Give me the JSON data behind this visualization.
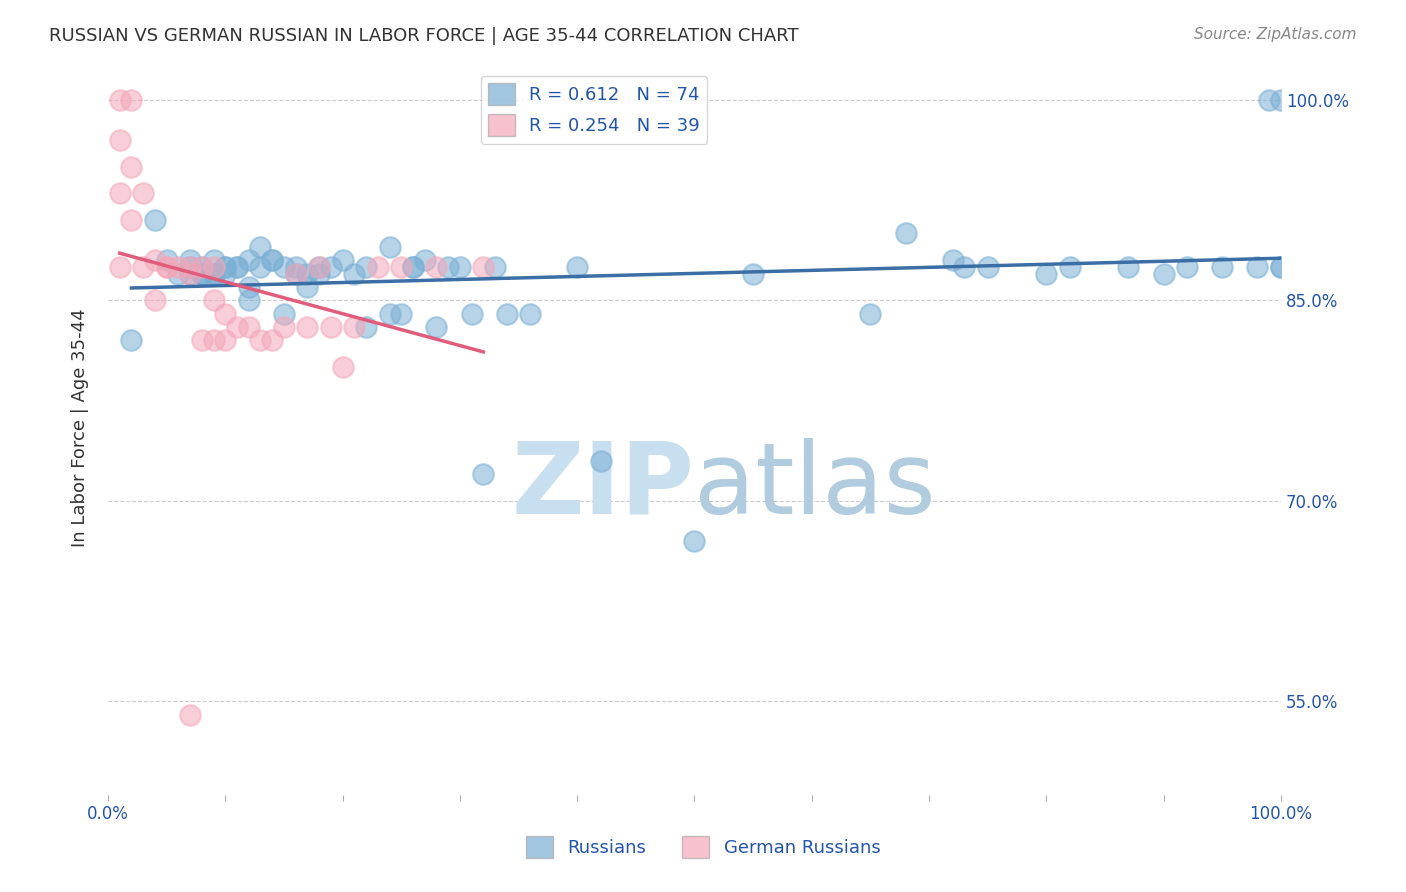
{
  "title": "RUSSIAN VS GERMAN RUSSIAN IN LABOR FORCE | AGE 35-44 CORRELATION CHART",
  "source": "Source: ZipAtlas.com",
  "ylabel": "In Labor Force | Age 35-44",
  "xlim": [
    0,
    1
  ],
  "ylim": [
    0.48,
    1.03
  ],
  "ytick_positions": [
    0.55,
    0.7,
    0.85,
    1.0
  ],
  "ytick_labels": [
    "55.0%",
    "70.0%",
    "85.0%",
    "100.0%"
  ],
  "xtick_positions": [
    0.0,
    0.1,
    0.2,
    0.3,
    0.4,
    0.5,
    0.6,
    0.7,
    0.8,
    0.9,
    1.0
  ],
  "xtick_labels": [
    "0.0%",
    "",
    "",
    "",
    "",
    "",
    "",
    "",
    "",
    "",
    "100.0%"
  ],
  "background_color": "#ffffff",
  "grid_color": "#cccccc",
  "blue_color": "#7bafd4",
  "pink_color": "#f4a7b9",
  "blue_line_color": "#3a6ea5",
  "pink_line_color": "#e05c7a",
  "title_color": "#333333",
  "source_color": "#888888",
  "axis_label_color": "#2255aa",
  "watermark_zip_color": "#c8dff0",
  "watermark_atlas_color": "#b0ccde",
  "R_blue": 0.612,
  "N_blue": 74,
  "R_pink": 0.254,
  "N_pink": 39,
  "blue_scatter_x": [
    0.02,
    0.04,
    0.05,
    0.06,
    0.07,
    0.07,
    0.07,
    0.08,
    0.08,
    0.08,
    0.08,
    0.09,
    0.09,
    0.09,
    0.09,
    0.1,
    0.1,
    0.1,
    0.11,
    0.11,
    0.12,
    0.12,
    0.12,
    0.13,
    0.13,
    0.14,
    0.14,
    0.15,
    0.15,
    0.16,
    0.16,
    0.17,
    0.17,
    0.18,
    0.18,
    0.19,
    0.2,
    0.21,
    0.22,
    0.22,
    0.24,
    0.24,
    0.25,
    0.26,
    0.26,
    0.27,
    0.28,
    0.29,
    0.3,
    0.31,
    0.32,
    0.33,
    0.34,
    0.36,
    0.4,
    0.42,
    0.5,
    0.55,
    0.65,
    0.68,
    0.72,
    0.73,
    0.75,
    0.8,
    0.82,
    0.87,
    0.9,
    0.92,
    0.95,
    0.98,
    0.99,
    1.0,
    1.0,
    1.0
  ],
  "blue_scatter_y": [
    0.82,
    0.91,
    0.88,
    0.87,
    0.88,
    0.875,
    0.87,
    0.87,
    0.875,
    0.87,
    0.87,
    0.88,
    0.87,
    0.87,
    0.87,
    0.875,
    0.875,
    0.87,
    0.875,
    0.875,
    0.86,
    0.88,
    0.85,
    0.89,
    0.875,
    0.88,
    0.88,
    0.875,
    0.84,
    0.875,
    0.87,
    0.87,
    0.86,
    0.87,
    0.875,
    0.875,
    0.88,
    0.87,
    0.83,
    0.875,
    0.84,
    0.89,
    0.84,
    0.875,
    0.875,
    0.88,
    0.83,
    0.875,
    0.875,
    0.84,
    0.72,
    0.875,
    0.84,
    0.84,
    0.875,
    0.73,
    0.67,
    0.87,
    0.84,
    0.9,
    0.88,
    0.875,
    0.875,
    0.87,
    0.875,
    0.875,
    0.87,
    0.875,
    0.875,
    0.875,
    1.0,
    0.875,
    0.875,
    1.0
  ],
  "pink_scatter_x": [
    0.01,
    0.01,
    0.01,
    0.01,
    0.02,
    0.02,
    0.02,
    0.03,
    0.03,
    0.04,
    0.04,
    0.05,
    0.05,
    0.06,
    0.07,
    0.07,
    0.08,
    0.08,
    0.09,
    0.09,
    0.1,
    0.1,
    0.11,
    0.12,
    0.13,
    0.14,
    0.15,
    0.16,
    0.17,
    0.18,
    0.19,
    0.2,
    0.21,
    0.23,
    0.25,
    0.28,
    0.32,
    0.07,
    0.09
  ],
  "pink_scatter_y": [
    1.0,
    0.97,
    0.93,
    0.875,
    1.0,
    0.95,
    0.91,
    0.93,
    0.875,
    0.88,
    0.85,
    0.875,
    0.875,
    0.875,
    0.875,
    0.87,
    0.875,
    0.82,
    0.85,
    0.82,
    0.84,
    0.82,
    0.83,
    0.83,
    0.82,
    0.82,
    0.83,
    0.87,
    0.83,
    0.875,
    0.83,
    0.8,
    0.83,
    0.875,
    0.875,
    0.875,
    0.875,
    0.54,
    0.875
  ]
}
